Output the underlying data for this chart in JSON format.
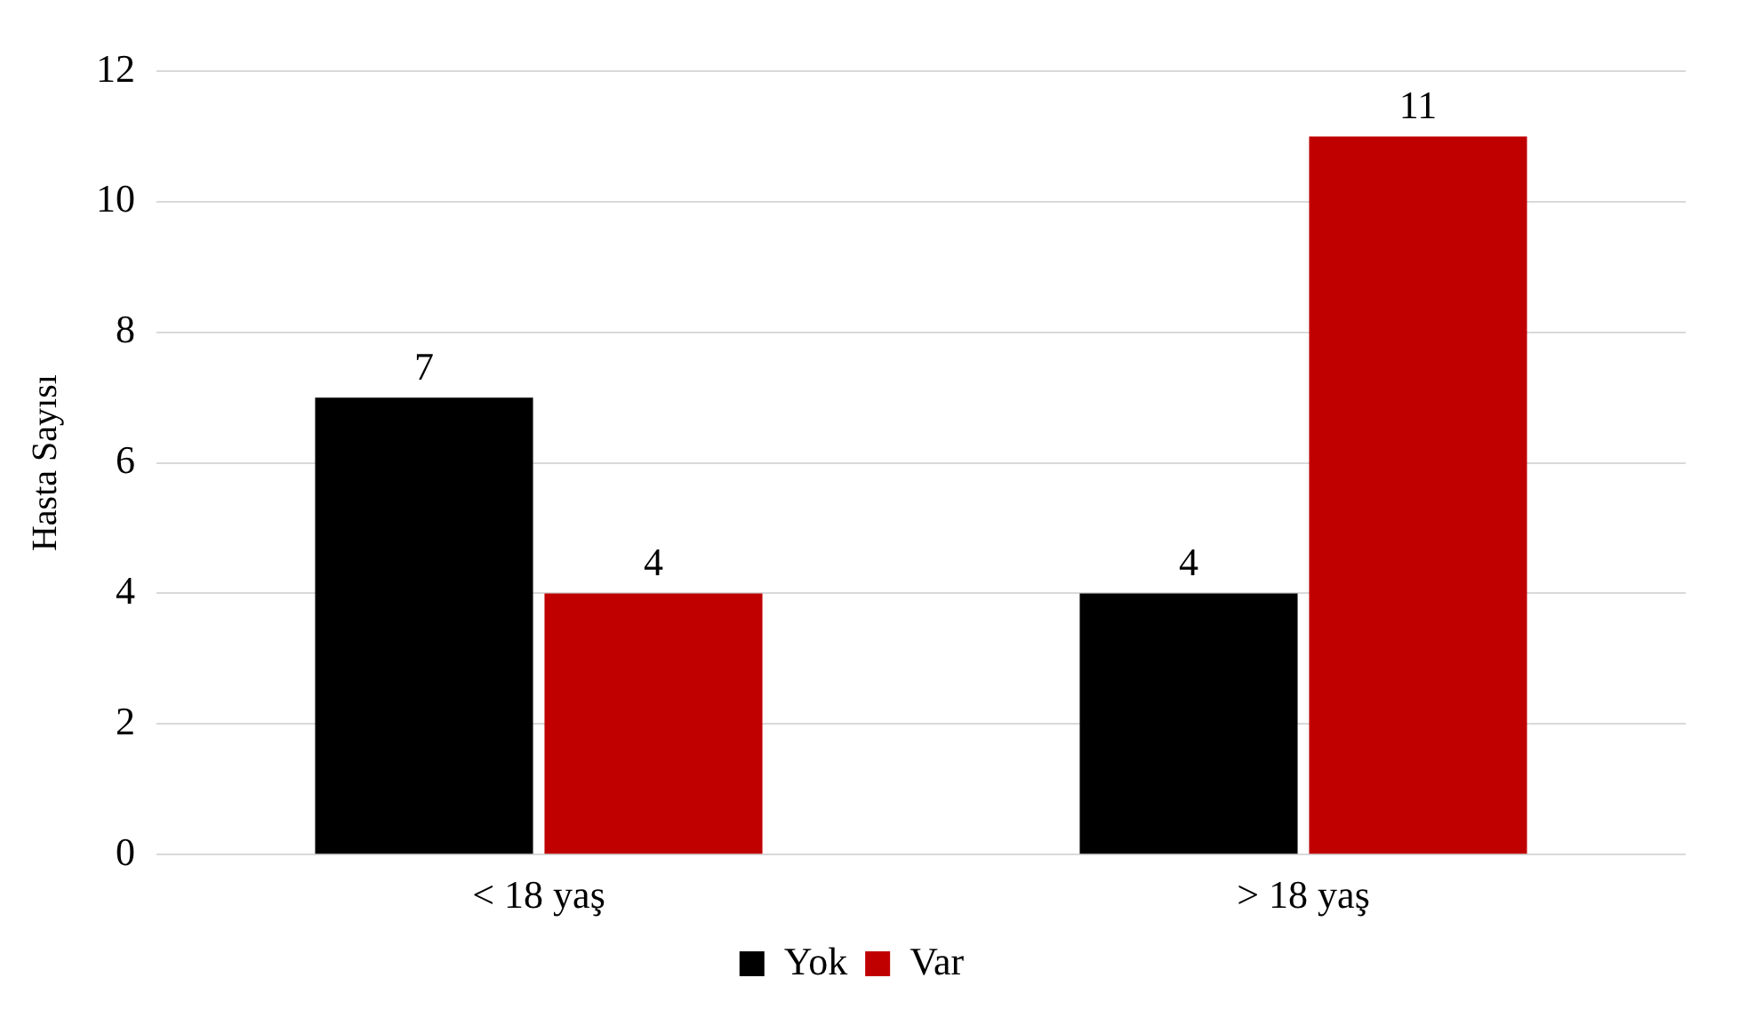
{
  "chart_data": {
    "type": "bar",
    "ylabel": "Hasta Sayısı",
    "categories": [
      "< 18 yaş",
      "> 18 yaş"
    ],
    "series": [
      {
        "name": "Yok",
        "color": "#000000",
        "values": [
          7,
          4
        ]
      },
      {
        "name": "Var",
        "color": "#c00000",
        "values": [
          4,
          11
        ]
      }
    ],
    "ylim": [
      0,
      12
    ],
    "yticks": [
      0,
      2,
      4,
      6,
      8,
      10,
      12
    ],
    "grid": "y",
    "legend": "bottom",
    "data_labels": true
  }
}
